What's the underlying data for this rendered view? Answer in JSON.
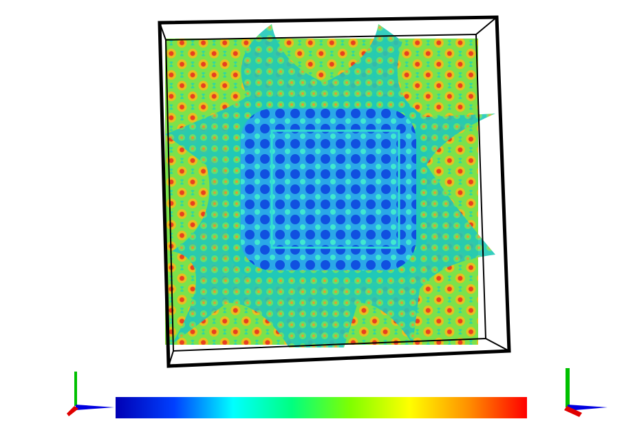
{
  "colorbar": {
    "colors": [
      "#0000b4",
      "#0040ff",
      "#00ffff",
      "#00ff80",
      "#80ff00",
      "#ffff00",
      "#ff9000",
      "#ff0000"
    ]
  }
}
